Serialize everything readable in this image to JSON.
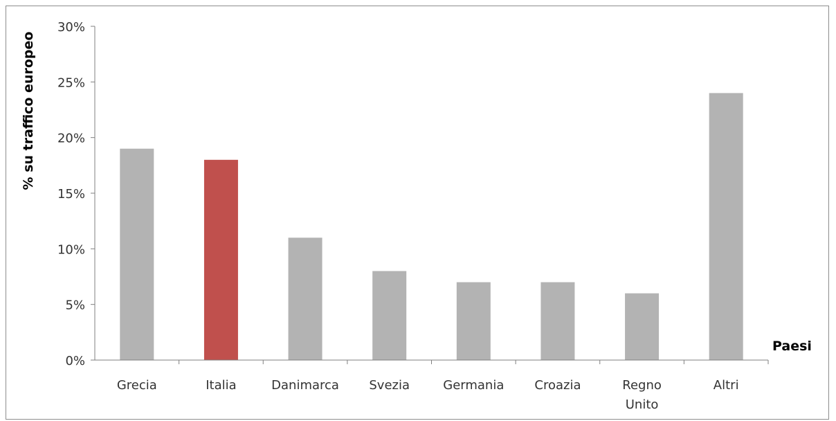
{
  "chart_data": {
    "type": "bar",
    "title": "",
    "xlabel": "Paesi",
    "ylabel": "% su traffico europeo",
    "categories": [
      "Grecia",
      "Italia",
      "Danimarca",
      "Svezia",
      "Germania",
      "Croazia",
      "Regno Unito",
      "Altri"
    ],
    "category_lines": [
      [
        "Grecia"
      ],
      [
        "Italia"
      ],
      [
        "Danimarca"
      ],
      [
        "Svezia"
      ],
      [
        "Germania"
      ],
      [
        "Croazia"
      ],
      [
        "Regno",
        "Unito"
      ],
      [
        "Altri"
      ]
    ],
    "values": [
      19,
      18,
      11,
      8,
      7,
      7,
      6,
      24
    ],
    "ylim": [
      0,
      30
    ],
    "yticks": [
      0,
      5,
      10,
      15,
      20,
      25,
      30
    ],
    "ytick_labels": [
      "0%",
      "5%",
      "10%",
      "15%",
      "20%",
      "25%",
      "30%"
    ],
    "grid": false,
    "legend": "none",
    "colors": {
      "default": "#b3b3b3",
      "highlight": "#c0504d",
      "highlight_category": "Italia",
      "axis": "#7f7f7f"
    }
  }
}
